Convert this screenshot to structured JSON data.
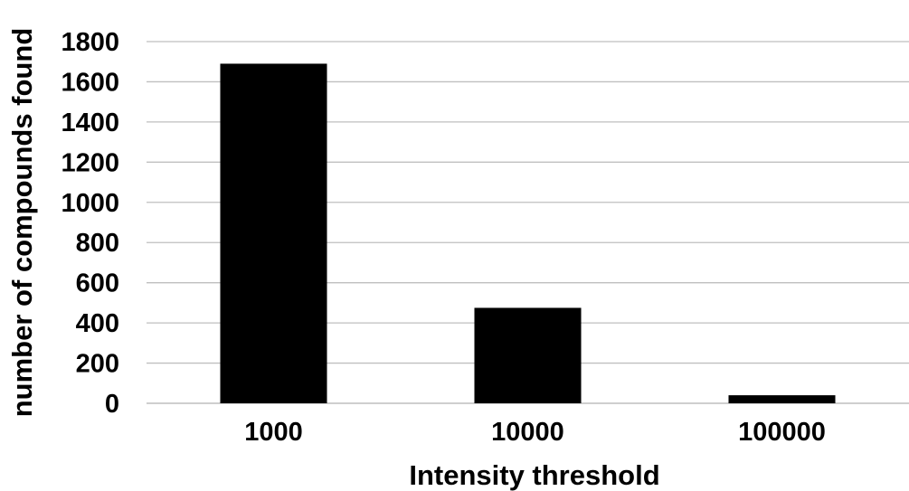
{
  "chart_data": {
    "type": "bar",
    "title": "",
    "xlabel": "Intensity threshold",
    "ylabel": "number of compounds found",
    "categories": [
      "1000",
      "10000",
      "100000"
    ],
    "values": [
      1690,
      475,
      40
    ],
    "ylim": [
      0,
      1800
    ],
    "yticks": [
      0,
      200,
      400,
      600,
      800,
      1000,
      1200,
      1400,
      1600,
      1800
    ],
    "grid": true,
    "legend": "none",
    "bar_color": "#000000",
    "grid_color": "#bfbfbf"
  }
}
